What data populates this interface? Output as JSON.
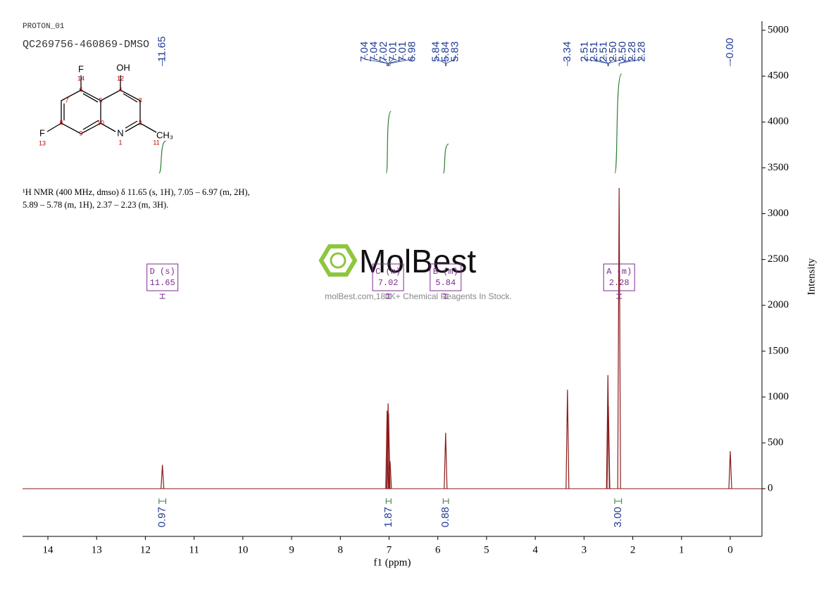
{
  "chart_data": {
    "type": "line",
    "sample": "PROTON_01",
    "title": "QC269756-460869-DMSO",
    "xlabel": "f1 (ppm)",
    "ylabel": "Intensity",
    "xlim": [
      14.52,
      -0.65
    ],
    "xticks": [
      14,
      13,
      12,
      11,
      10,
      9,
      8,
      7,
      6,
      5,
      4,
      3,
      2,
      1,
      0
    ],
    "ylim": [
      -520,
      5100
    ],
    "yticks": [
      0,
      500,
      1000,
      1500,
      2000,
      2500,
      3000,
      3500,
      4000,
      4500,
      5000
    ],
    "color": "#8b1a1a",
    "series": [
      {
        "name": "spectrum",
        "x": [
          11.65,
          7.04,
          7.02,
          7.01,
          6.98,
          5.84,
          3.34,
          2.51,
          2.5,
          2.28,
          0.0
        ],
        "values": [
          260,
          850,
          930,
          820,
          300,
          610,
          1080,
          1240,
          900,
          3280,
          410
        ]
      }
    ],
    "peak_labels": [
      {
        "value": 11.65,
        "label": "11.65"
      },
      {
        "value": 7.04,
        "label": "7.04"
      },
      {
        "value": 7.04,
        "label": "7.04"
      },
      {
        "value": 7.02,
        "label": "7.02"
      },
      {
        "value": 7.01,
        "label": "7.01"
      },
      {
        "value": 7.01,
        "label": "7.01"
      },
      {
        "value": 6.98,
        "label": "6.98"
      },
      {
        "value": 5.84,
        "label": "5.84"
      },
      {
        "value": 5.84,
        "label": "5.84"
      },
      {
        "value": 5.83,
        "label": "5.83"
      },
      {
        "value": 3.34,
        "label": "3.34"
      },
      {
        "value": 2.51,
        "label": "2.51"
      },
      {
        "value": 2.51,
        "label": "2.51"
      },
      {
        "value": 2.51,
        "label": "2.51"
      },
      {
        "value": 2.5,
        "label": "2.50"
      },
      {
        "value": 2.5,
        "label": "2.50"
      },
      {
        "value": 2.28,
        "label": "2.28"
      },
      {
        "value": 2.28,
        "label": "2.28"
      },
      {
        "value": 0,
        "label": "-0.00"
      }
    ],
    "integrals": [
      {
        "range": [
          11.72,
          11.58
        ],
        "value": 0.97
      },
      {
        "range": [
          7.06,
          6.96
        ],
        "value": 1.87
      },
      {
        "range": [
          5.89,
          5.78
        ],
        "value": 0.88
      },
      {
        "range": [
          2.37,
          2.23
        ],
        "value": {
          "value": 3,
          "label": "3.00"
        }
      }
    ],
    "multiplets": [
      {
        "label": "D (s)",
        "shift": 11.65
      },
      {
        "label": "C (m)",
        "shift": 7.02
      },
      {
        "label": "B (m)",
        "shift": 5.84
      },
      {
        "label": "A (m)",
        "shift": 2.28
      }
    ],
    "description": [
      "¹H NMR (400 MHz, dmso) δ 11.65 (s, 1H), 7.05 – 6.97 (m, 2H),",
      "5.89 – 5.78 (m, 1H), 2.37 – 2.23 (m, 3H)."
    ],
    "structure": {
      "atoms": [
        "F",
        "OH",
        "F",
        "N",
        "CH₃"
      ],
      "numbers": [
        14,
        12,
        7,
        6,
        5,
        4,
        3,
        8,
        10,
        2,
        9,
        13,
        1,
        11
      ]
    },
    "watermark": {
      "brand": "MolBest",
      "tagline": "molBest.com,180K+ Chemical Reagents In Stock."
    }
  }
}
